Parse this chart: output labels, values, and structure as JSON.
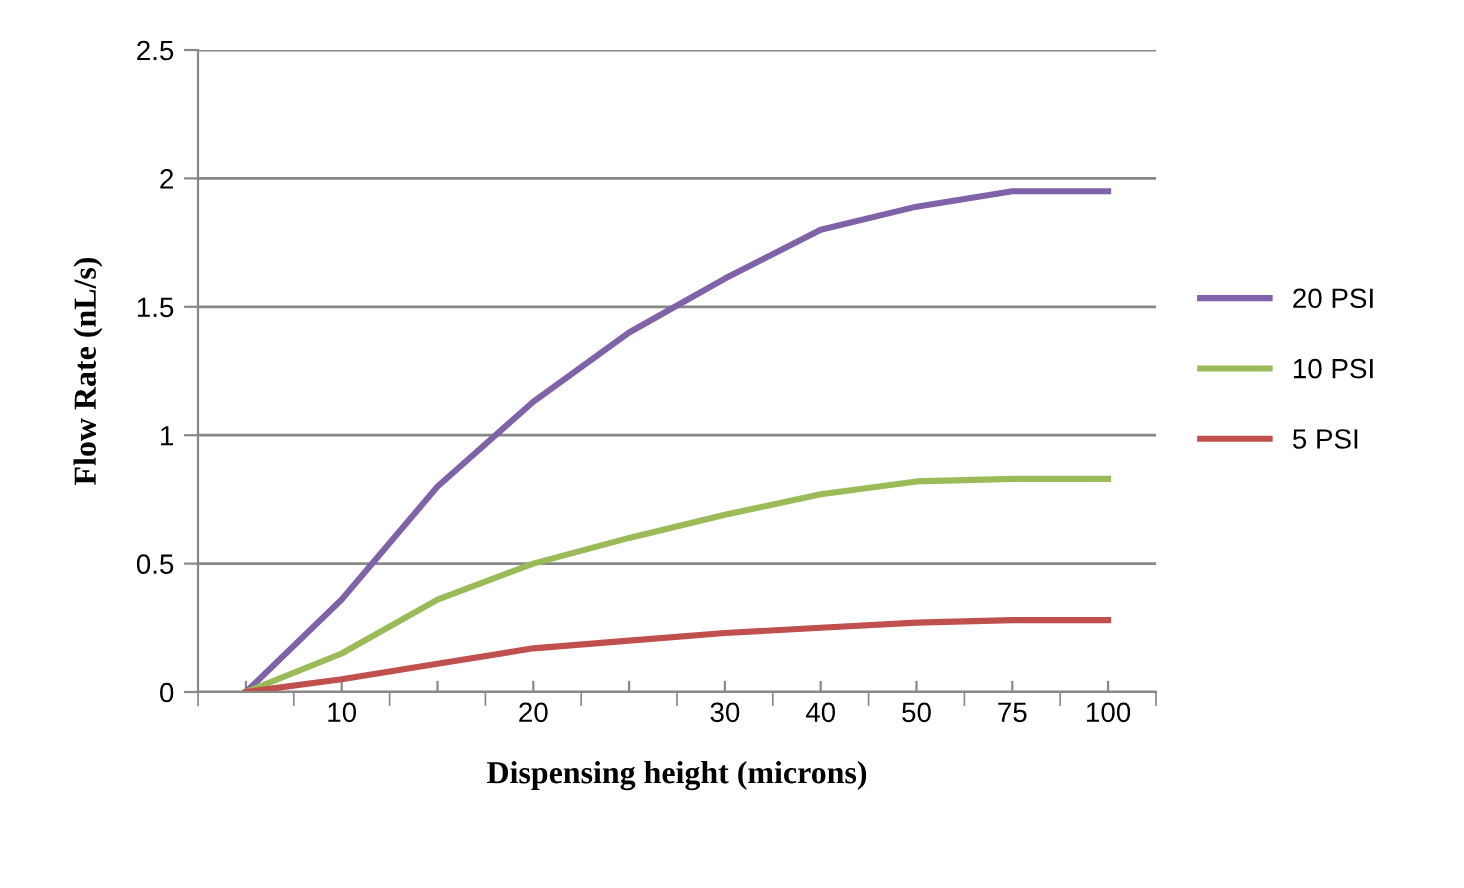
{
  "chart_data": {
    "type": "line",
    "xlabel": "Dispensing height (microns)",
    "ylabel": "Flow Rate (nL/s)",
    "categories": [
      null,
      "10",
      null,
      "20",
      null,
      "30",
      "40",
      "50",
      "75",
      "100"
    ],
    "series": [
      {
        "name": "20 PSI",
        "color": "#7f62a8",
        "values": [
          0,
          0.36,
          0.8,
          1.13,
          1.4,
          1.61,
          1.8,
          1.89,
          1.95,
          1.95
        ]
      },
      {
        "name": "10 PSI",
        "color": "#9bbb59",
        "values": [
          0,
          0.15,
          0.36,
          0.5,
          0.6,
          0.69,
          0.77,
          0.82,
          0.83,
          0.83
        ]
      },
      {
        "name": "5 PSI",
        "color": "#c0504d",
        "values": [
          0,
          0.05,
          0.11,
          0.17,
          0.2,
          0.23,
          0.25,
          0.27,
          0.28,
          0.28
        ]
      }
    ],
    "ylim": [
      0,
      2.5
    ],
    "yticks": [
      0,
      0.5,
      1,
      1.5,
      2,
      2.5
    ],
    "grid": "y",
    "legend": "right",
    "marker": "none",
    "line_style": "solid"
  }
}
